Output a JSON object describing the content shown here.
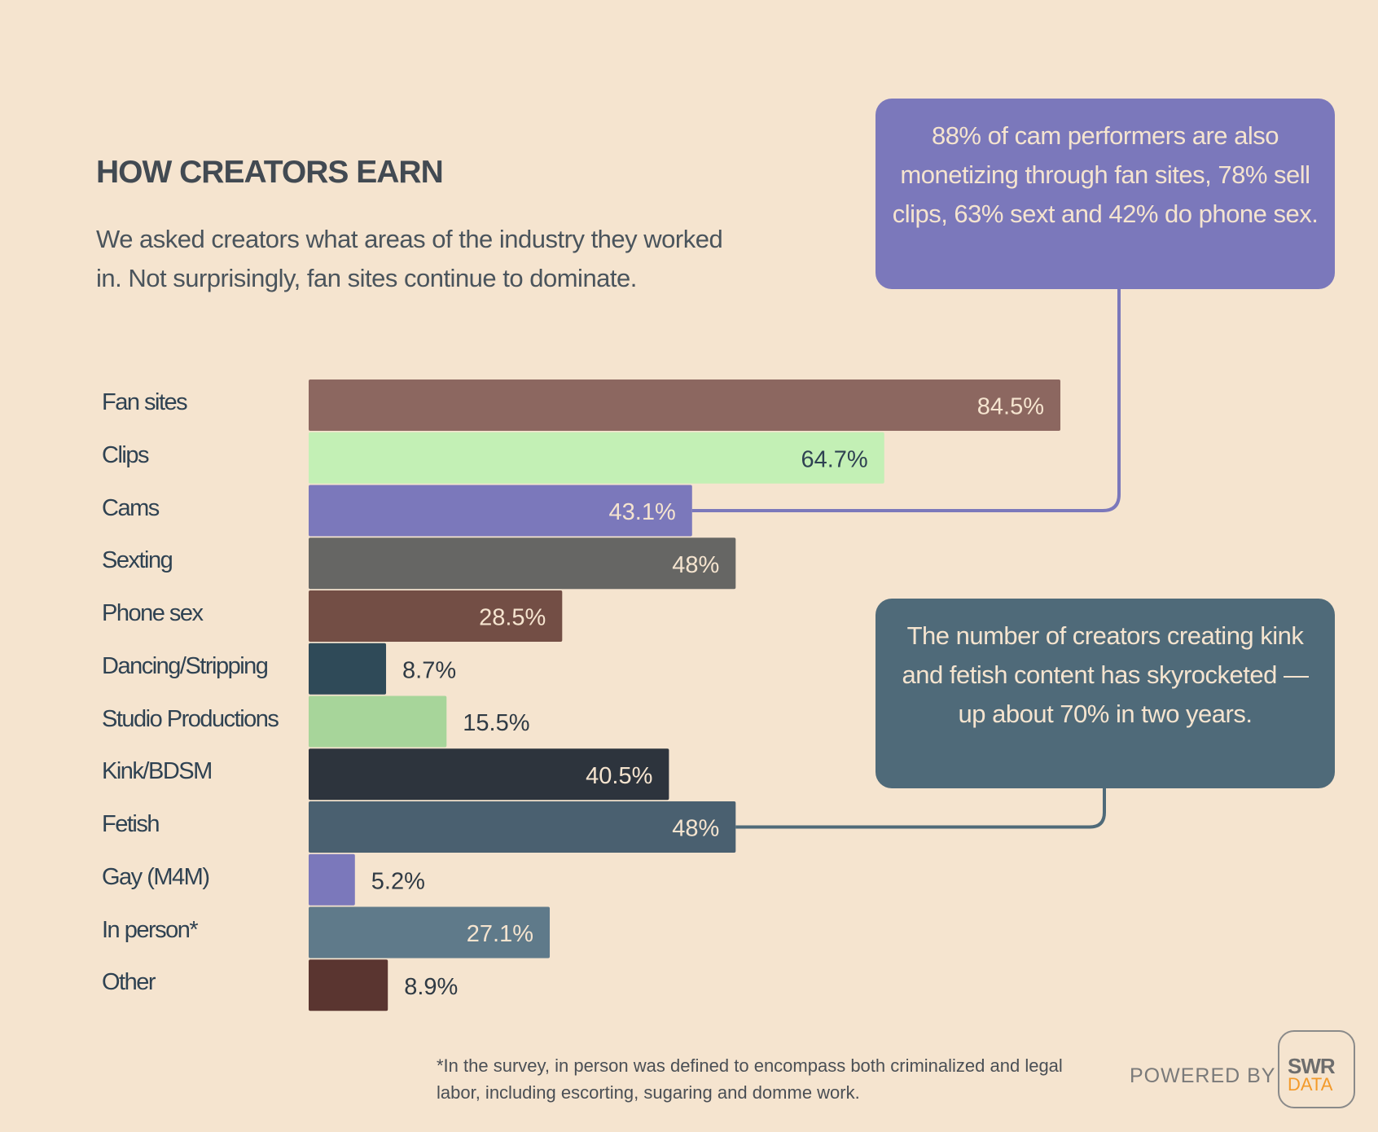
{
  "header": {
    "title": "HOW CREATORS EARN",
    "subtitle": "We asked creators what areas of the industry they worked in. Not surprisingly, fan sites continue to dominate."
  },
  "callouts": [
    {
      "text": "88% of cam performers are also monetizing through fan sites, 78% sell clips, 63% sext and 42% do phone sex.",
      "color": "#7b78bb",
      "points_to": "Cams"
    },
    {
      "text": "The number of creators creating kink and fetish content has skyrocketed — up about 70% in two years.",
      "color": "#4f6a79",
      "points_to": "Fetish"
    }
  ],
  "chart_data": {
    "type": "bar",
    "orientation": "horizontal",
    "xlim": [
      0,
      100
    ],
    "grid": false,
    "categories": [
      "Fan sites",
      "Clips",
      "Cams",
      "Sexting",
      "Phone sex",
      "Dancing/Stripping",
      "Studio Productions",
      "Kink/BDSM",
      "Fetish",
      "Gay (M4M)",
      "In person*",
      "Other"
    ],
    "values": [
      84.5,
      64.7,
      43.1,
      48,
      28.5,
      8.7,
      15.5,
      40.5,
      48,
      5.2,
      27.1,
      8.9
    ],
    "labels": [
      "84.5%",
      "64.7%",
      "43.1%",
      "48%",
      "28.5%",
      "8.7%",
      "15.5%",
      "40.5%",
      "48%",
      "5.2%",
      "27.1%",
      "8.9%"
    ],
    "colors": [
      "#8c6760",
      "#c3f0b5",
      "#7b78bb",
      "#666664",
      "#734e45",
      "#2f4a58",
      "#a7d59a",
      "#2d343d",
      "#4a6070",
      "#7b78bb",
      "#5f7a8a",
      "#5a3530"
    ]
  },
  "footnote": "*In the survey, in person was defined to encompass both criminalized and legal labor,  including escorting, sugaring and domme work.",
  "branding": {
    "powered_by": "POWERED BY",
    "logo_line1": "SWR",
    "logo_line2": "DATA"
  }
}
